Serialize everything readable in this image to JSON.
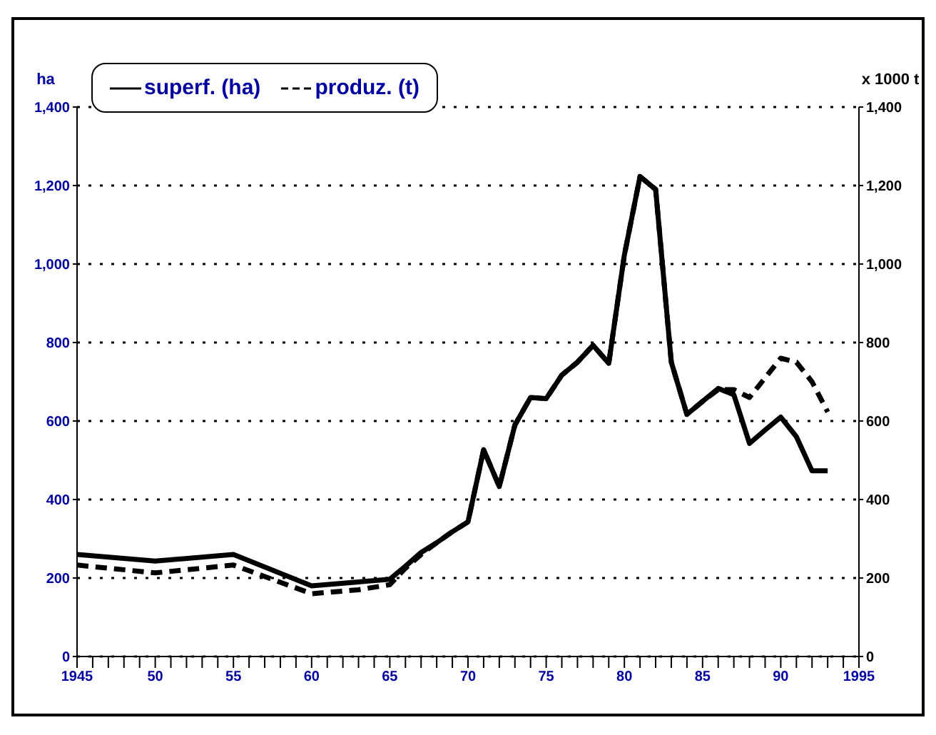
{
  "chart_data": {
    "type": "line",
    "ylabel": "ha",
    "y2label": "x 1000 t",
    "x": [
      1945,
      1950,
      1955,
      1960,
      1963,
      1965,
      1966,
      1967,
      1968,
      1969,
      1970,
      1971,
      1972,
      1973,
      1974,
      1975,
      1976,
      1977,
      1978,
      1979,
      1980,
      1981,
      1982,
      1983,
      1984,
      1985,
      1986,
      1987,
      1988,
      1989,
      1990,
      1991,
      1992,
      1993
    ],
    "series": [
      {
        "name": "superf. (ha)",
        "color": "#000000",
        "line_style": "solid",
        "values": [
          260,
          243,
          260,
          180,
          190,
          197,
          230,
          265,
          290,
          318,
          343,
          527,
          433,
          590,
          660,
          657,
          717,
          750,
          793,
          747,
          1023,
          1223,
          1190,
          750,
          617,
          650,
          683,
          667,
          543,
          577,
          610,
          560,
          473,
          473
        ]
      },
      {
        "name": "produz. (t)",
        "color": "#000000",
        "line_style": "dashed",
        "axis": "y2",
        "values": [
          233,
          213,
          233,
          160,
          170,
          183,
          225,
          260,
          290,
          318,
          343,
          527,
          433,
          590,
          660,
          657,
          717,
          750,
          793,
          747,
          1023,
          1223,
          1190,
          750,
          617,
          650,
          680,
          680,
          660,
          710,
          760,
          750,
          700,
          623
        ]
      }
    ],
    "xlim": [
      1945,
      1995
    ],
    "xticks": [
      {
        "value": 1945,
        "label": "1945"
      },
      {
        "value": 1946,
        "label": null
      },
      {
        "value": 1947,
        "label": null
      },
      {
        "value": 1948,
        "label": null
      },
      {
        "value": 1949,
        "label": null
      },
      {
        "value": 1950,
        "label": "50"
      },
      {
        "value": 1951,
        "label": null
      },
      {
        "value": 1952,
        "label": null
      },
      {
        "value": 1953,
        "label": null
      },
      {
        "value": 1954,
        "label": null
      },
      {
        "value": 1955,
        "label": "55"
      },
      {
        "value": 1956,
        "label": null
      },
      {
        "value": 1957,
        "label": null
      },
      {
        "value": 1958,
        "label": null
      },
      {
        "value": 1959,
        "label": null
      },
      {
        "value": 1960,
        "label": "60"
      },
      {
        "value": 1961,
        "label": null
      },
      {
        "value": 1962,
        "label": null
      },
      {
        "value": 1963,
        "label": null
      },
      {
        "value": 1964,
        "label": null
      },
      {
        "value": 1965,
        "label": "65"
      },
      {
        "value": 1966,
        "label": null
      },
      {
        "value": 1967,
        "label": null
      },
      {
        "value": 1968,
        "label": null
      },
      {
        "value": 1969,
        "label": null
      },
      {
        "value": 1970,
        "label": "70"
      },
      {
        "value": 1971,
        "label": null
      },
      {
        "value": 1972,
        "label": null
      },
      {
        "value": 1973,
        "label": null
      },
      {
        "value": 1974,
        "label": null
      },
      {
        "value": 1975,
        "label": "75"
      },
      {
        "value": 1976,
        "label": null
      },
      {
        "value": 1977,
        "label": null
      },
      {
        "value": 1978,
        "label": null
      },
      {
        "value": 1979,
        "label": null
      },
      {
        "value": 1980,
        "label": "80"
      },
      {
        "value": 1981,
        "label": null
      },
      {
        "value": 1982,
        "label": null
      },
      {
        "value": 1983,
        "label": null
      },
      {
        "value": 1984,
        "label": null
      },
      {
        "value": 1985,
        "label": "85"
      },
      {
        "value": 1986,
        "label": null
      },
      {
        "value": 1987,
        "label": null
      },
      {
        "value": 1988,
        "label": null
      },
      {
        "value": 1989,
        "label": null
      },
      {
        "value": 1990,
        "label": "90"
      },
      {
        "value": 1991,
        "label": null
      },
      {
        "value": 1992,
        "label": null
      },
      {
        "value": 1993,
        "label": null
      },
      {
        "value": 1994,
        "label": null
      },
      {
        "value": 1995,
        "label": "1995"
      }
    ],
    "ylim": [
      0,
      1400
    ],
    "yticks": [
      0,
      200,
      400,
      600,
      800,
      {
        "value": 1000,
        "label": "1,000"
      },
      {
        "value": 1200,
        "label": "1,200"
      },
      {
        "value": 1400,
        "label": "1,400"
      }
    ],
    "y2lim": [
      0,
      1400
    ],
    "y2ticks": [
      0,
      200,
      400,
      600,
      800,
      {
        "value": 1000,
        "label": "1,000"
      },
      {
        "value": 1200,
        "label": "1,200"
      },
      {
        "value": 1400,
        "label": "1,400"
      }
    ],
    "grid": "y",
    "legend": "top left",
    "marker": "none"
  }
}
